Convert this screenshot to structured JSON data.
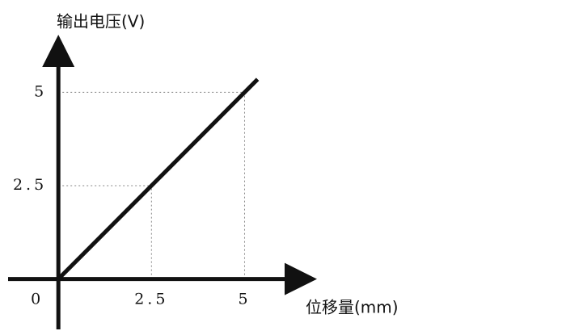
{
  "chart_data": {
    "type": "line",
    "x_label": "位移量(mm)",
    "y_label": "输出电压(V)",
    "x": [
      0,
      5.35
    ],
    "series": [
      {
        "color": "#111111",
        "values": [
          0,
          5.35
        ]
      }
    ],
    "xlim": [
      -1.35,
      6.9
    ],
    "ylim": [
      -1.35,
      6.5
    ],
    "xticks": [
      0,
      2.5,
      5
    ],
    "yticks": [
      2.5,
      5
    ],
    "grid": "dotted"
  }
}
